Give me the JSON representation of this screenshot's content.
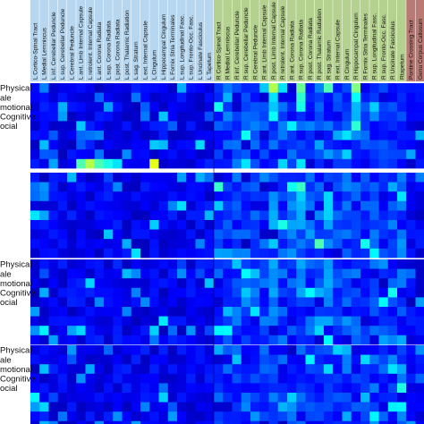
{
  "chart_data": {
    "type": "heatmap",
    "colormap": "jet",
    "value_range": [
      0,
      1
    ],
    "columns": [
      "L Cortico-Spinal Tract",
      "L Medial Lemniscus",
      "L inf. Cerebellar Peduncle",
      "L sup. Cerebellar Peduncle",
      "L Cerebral Peduncle",
      "L ant. Limb Internal Capsule",
      "L retrolent. Internal Capsule",
      "L ant. Corona Radiata",
      "L sup. Corona Radiata",
      "L post. Corona Radiata",
      "L post. Thalamic Radiation",
      "L sag. Stratum",
      "L ext. Internal Capsule",
      "L Cingulum",
      "L Hippocampal Cingulum",
      "L Fornix Stria Terminales",
      "L sup. Longitudinal Fasc.",
      "L sup. Fronto-Occ. Fasc.",
      "L Uncinate Fasciculus",
      "L Tapetum",
      "R Cortico-Spinal Tract",
      "R Medial Lemniscus",
      "R inf. Cerebellar Peduncle",
      "R sup. Cerebellar Peduncle",
      "R Cerebral Peduncle",
      "R ant. Limb Internal Capsule",
      "R post. Limb Internal Capsule",
      "R retrolent. Internal Capsule",
      "R ant. Corona Radiata",
      "R sup. Corona Radiata",
      "R post. Corona Radiata",
      "R post. Thalamic Radiation",
      "R sag. Stratum",
      "R ext. Internal Capsule",
      "R Cingulum",
      "R Hippocampal Cingulum",
      "R Fornix Stria Terminales",
      "R sup. Longitudinal Fasc.",
      "R sup. Fronto-Occ. Fasc.",
      "R Uncinate Fasciculus",
      "Rtapetum",
      "Pontine Crossing Tract",
      "Genu Corpus Callosum"
    ],
    "column_colors": [
      "#b7d7f0",
      "#b5d18f",
      "#b97a73"
    ],
    "column_groups": [
      20,
      21,
      2
    ],
    "blocks": [
      {
        "rows": [
          "Physical",
          "ale",
          "motional",
          "Cognitive",
          "ocial",
          "",
          "",
          "",
          ""
        ]
      },
      {
        "rows": [
          "",
          "",
          "",
          "",
          "",
          "",
          "",
          "",
          ""
        ]
      },
      {
        "rows": [
          "Physical",
          "ale",
          "motional",
          "Cognitive",
          "ocial",
          "",
          "",
          "",
          ""
        ]
      },
      {
        "rows": [
          "Physical",
          "ale",
          "motional",
          "Cognitive",
          "ocial",
          "",
          "",
          "",
          ""
        ]
      }
    ],
    "row_labels_top": [
      "Physical",
      "ale",
      "motional",
      "Cognitive",
      "ocial",
      "",
      "",
      "",
      ""
    ],
    "row_labels_b2": [
      "",
      "",
      "",
      "",
      "",
      "",
      "",
      "",
      ""
    ],
    "row_labels_b3": [
      "Physical",
      "ale",
      "motional",
      "Cognitive",
      "ocial",
      "",
      "",
      "",
      ""
    ],
    "row_labels_b4": [
      "Physical",
      "ale",
      "motional",
      "Cognitive",
      "ocial",
      "",
      "",
      "",
      ""
    ]
  }
}
